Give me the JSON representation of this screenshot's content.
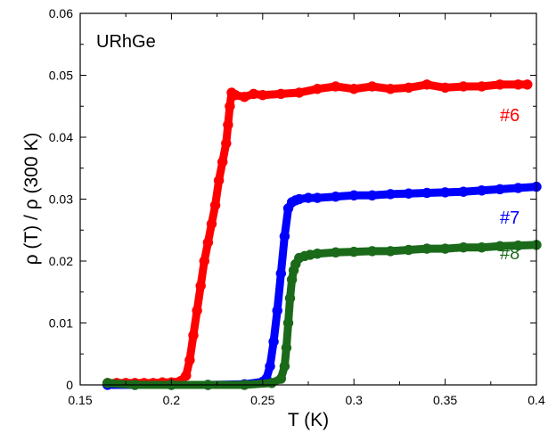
{
  "chart_data": {
    "type": "scatter",
    "xlabel": "T (K)",
    "ylabel": "ρ (T) / ρ (300 K)",
    "xlim": [
      0.15,
      0.4
    ],
    "ylim": [
      0,
      0.06
    ],
    "x_ticks": [
      "0.15",
      "0.2",
      "0.25",
      "0.3",
      "0.35",
      "0.4"
    ],
    "y_ticks": [
      "0",
      "0.01",
      "0.02",
      "0.03",
      "0.04",
      "0.05",
      "0.06"
    ],
    "annotations": {
      "sample": "URhGe"
    },
    "grid": false,
    "series": [
      {
        "name": "#6",
        "color": "#ff0000",
        "marker": "circle",
        "x": [
          0.165,
          0.17,
          0.175,
          0.18,
          0.185,
          0.19,
          0.195,
          0.2,
          0.205,
          0.208,
          0.21,
          0.212,
          0.214,
          0.216,
          0.218,
          0.22,
          0.222,
          0.224,
          0.226,
          0.228,
          0.23,
          0.231,
          0.232,
          0.233,
          0.235,
          0.24,
          0.245,
          0.25,
          0.26,
          0.27,
          0.28,
          0.29,
          0.3,
          0.31,
          0.32,
          0.33,
          0.34,
          0.35,
          0.36,
          0.37,
          0.38,
          0.39,
          0.395
        ],
        "y": [
          0.0003,
          0.0003,
          0.0003,
          0.0003,
          0.0003,
          0.0003,
          0.0004,
          0.0004,
          0.0006,
          0.0015,
          0.004,
          0.008,
          0.012,
          0.016,
          0.02,
          0.023,
          0.026,
          0.029,
          0.033,
          0.036,
          0.039,
          0.042,
          0.045,
          0.0472,
          0.0468,
          0.0465,
          0.047,
          0.0468,
          0.047,
          0.0472,
          0.0478,
          0.0482,
          0.0478,
          0.0482,
          0.0478,
          0.048,
          0.0485,
          0.048,
          0.0482,
          0.0482,
          0.0485,
          0.0485,
          0.0485
        ]
      },
      {
        "name": "#7",
        "color": "#0000ff",
        "marker": "circle",
        "x": [
          0.165,
          0.18,
          0.2,
          0.22,
          0.24,
          0.25,
          0.252,
          0.254,
          0.256,
          0.258,
          0.26,
          0.262,
          0.264,
          0.266,
          0.268,
          0.27,
          0.275,
          0.28,
          0.29,
          0.3,
          0.31,
          0.32,
          0.33,
          0.34,
          0.35,
          0.36,
          0.37,
          0.38,
          0.39,
          0.4
        ],
        "y": [
          0.0,
          0.0,
          0.0,
          0.0,
          0.0001,
          0.0005,
          0.001,
          0.003,
          0.007,
          0.012,
          0.018,
          0.024,
          0.0285,
          0.0295,
          0.0298,
          0.03,
          0.0302,
          0.0302,
          0.0304,
          0.0306,
          0.0306,
          0.0308,
          0.0309,
          0.031,
          0.0311,
          0.0312,
          0.0314,
          0.0316,
          0.0318,
          0.032
        ]
      },
      {
        "name": "#8",
        "color": "#1a6a1a",
        "marker": "circle",
        "x": [
          0.165,
          0.18,
          0.2,
          0.22,
          0.24,
          0.255,
          0.26,
          0.262,
          0.263,
          0.264,
          0.265,
          0.266,
          0.267,
          0.268,
          0.27,
          0.273,
          0.276,
          0.28,
          0.29,
          0.3,
          0.31,
          0.32,
          0.33,
          0.34,
          0.35,
          0.36,
          0.37,
          0.38,
          0.39,
          0.4
        ],
        "y": [
          0.0003,
          0.0,
          0.0,
          0.0,
          0.0,
          0.0003,
          0.001,
          0.003,
          0.006,
          0.01,
          0.014,
          0.017,
          0.0185,
          0.0195,
          0.0205,
          0.0208,
          0.021,
          0.0212,
          0.0214,
          0.0215,
          0.0216,
          0.0216,
          0.0218,
          0.022,
          0.022,
          0.0222,
          0.0222,
          0.0224,
          0.0225,
          0.0226
        ]
      }
    ]
  }
}
